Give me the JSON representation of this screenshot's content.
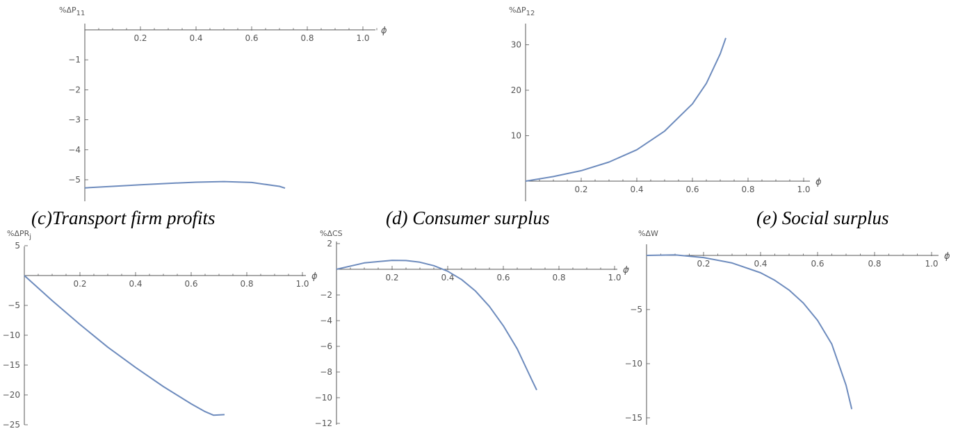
{
  "captions": {
    "c": "(c)Transport firm profits",
    "d": "(d) Consumer surplus",
    "e": "(e) Social surplus"
  },
  "colors": {
    "series": "#6d8bbd",
    "axis": "#555555"
  },
  "chart_data": [
    {
      "id": "p11",
      "type": "line",
      "ylabel": "%ΔP",
      "ylabel_sub": "11",
      "xlabel": "ϕ",
      "xlim": [
        0,
        1.05
      ],
      "ylim": [
        -5.5,
        0.3
      ],
      "xticks": [
        0.2,
        0.4,
        0.6,
        0.8,
        1.0
      ],
      "xtick_labels": [
        "0.2",
        "0.4",
        "0.6",
        "0.8",
        "1.0"
      ],
      "yticks": [
        -1,
        -2,
        -3,
        -4,
        -5
      ],
      "ytick_labels": [
        "-1",
        "-2",
        "-3",
        "-4",
        "-5"
      ],
      "x": [
        0,
        0.1,
        0.2,
        0.3,
        0.4,
        0.5,
        0.6,
        0.7,
        0.72
      ],
      "y": [
        -5.27,
        -5.22,
        -5.17,
        -5.12,
        -5.08,
        -5.06,
        -5.09,
        -5.22,
        -5.28
      ]
    },
    {
      "id": "p12",
      "type": "line",
      "ylabel": "%ΔP",
      "ylabel_sub": "12",
      "xlabel": "ϕ",
      "xlim": [
        0,
        1.05
      ],
      "ylim": [
        -2,
        35
      ],
      "xticks": [
        0.2,
        0.4,
        0.6,
        0.8,
        1.0
      ],
      "xtick_labels": [
        "0.2",
        "0.4",
        "0.6",
        "0.8",
        "1.0"
      ],
      "yticks": [
        10,
        20,
        30
      ],
      "ytick_labels": [
        "10",
        "20",
        "30"
      ],
      "x": [
        0,
        0.1,
        0.2,
        0.3,
        0.4,
        0.5,
        0.6,
        0.65,
        0.7,
        0.72
      ],
      "y": [
        0,
        1.0,
        2.3,
        4.2,
        6.9,
        11.0,
        17.0,
        21.5,
        28.0,
        31.5
      ]
    },
    {
      "id": "pr",
      "type": "line",
      "ylabel": "%ΔPR",
      "ylabel_sub": "j",
      "xlabel": "ϕ",
      "xlim": [
        0,
        1.05
      ],
      "ylim": [
        -25,
        5
      ],
      "xticks": [
        0.2,
        0.4,
        0.6,
        0.8,
        1.0
      ],
      "xtick_labels": [
        "0.2",
        "0.4",
        "0.6",
        "0.8",
        "1.0"
      ],
      "yticks": [
        5,
        -5,
        -10,
        -15,
        -20,
        -25
      ],
      "ytick_labels": [
        "5",
        "-5",
        "-10",
        "-15",
        "-20",
        "-25"
      ],
      "x": [
        0,
        0.1,
        0.2,
        0.3,
        0.4,
        0.5,
        0.6,
        0.65,
        0.68,
        0.72
      ],
      "y": [
        0,
        -4.2,
        -8.2,
        -12.0,
        -15.4,
        -18.6,
        -21.5,
        -22.8,
        -23.4,
        -23.3
      ]
    },
    {
      "id": "cs",
      "type": "line",
      "ylabel": "%ΔCS",
      "ylabel_sub": "",
      "xlabel": "ϕ",
      "xlim": [
        0,
        1.05
      ],
      "ylim": [
        -12,
        2
      ],
      "xticks": [
        0.2,
        0.4,
        0.6,
        0.8,
        1.0
      ],
      "xtick_labels": [
        "0.2",
        "0.4",
        "0.6",
        "0.8",
        "1.0"
      ],
      "yticks": [
        2,
        -2,
        -4,
        -6,
        -8,
        -10,
        -12
      ],
      "ytick_labels": [
        "2",
        "-2",
        "-4",
        "-6",
        "-8",
        "-10",
        "-12"
      ],
      "x": [
        0,
        0.1,
        0.2,
        0.25,
        0.3,
        0.35,
        0.4,
        0.45,
        0.5,
        0.55,
        0.6,
        0.65,
        0.7,
        0.72
      ],
      "y": [
        0,
        0.5,
        0.7,
        0.68,
        0.55,
        0.28,
        -0.15,
        -0.8,
        -1.7,
        -2.9,
        -4.4,
        -6.2,
        -8.5,
        -9.4
      ]
    },
    {
      "id": "w",
      "type": "line",
      "ylabel": "%ΔW",
      "ylabel_sub": "",
      "xlabel": "ϕ",
      "xlim": [
        0,
        1.05
      ],
      "ylim": [
        -16.5,
        1.2
      ],
      "xticks": [
        0.2,
        0.4,
        0.6,
        0.8,
        1.0
      ],
      "xtick_labels": [
        "0.2",
        "0.4",
        "0.6",
        "0.8",
        "1.0"
      ],
      "yticks": [
        -5,
        -10,
        -15
      ],
      "ytick_labels": [
        "-5",
        "-10",
        "-15"
      ],
      "x": [
        0,
        0.1,
        0.2,
        0.3,
        0.4,
        0.45,
        0.5,
        0.55,
        0.6,
        0.65,
        0.7,
        0.72
      ],
      "y": [
        0,
        0.05,
        -0.2,
        -0.7,
        -1.6,
        -2.3,
        -3.2,
        -4.4,
        -6.0,
        -8.2,
        -12.0,
        -14.2
      ]
    }
  ]
}
